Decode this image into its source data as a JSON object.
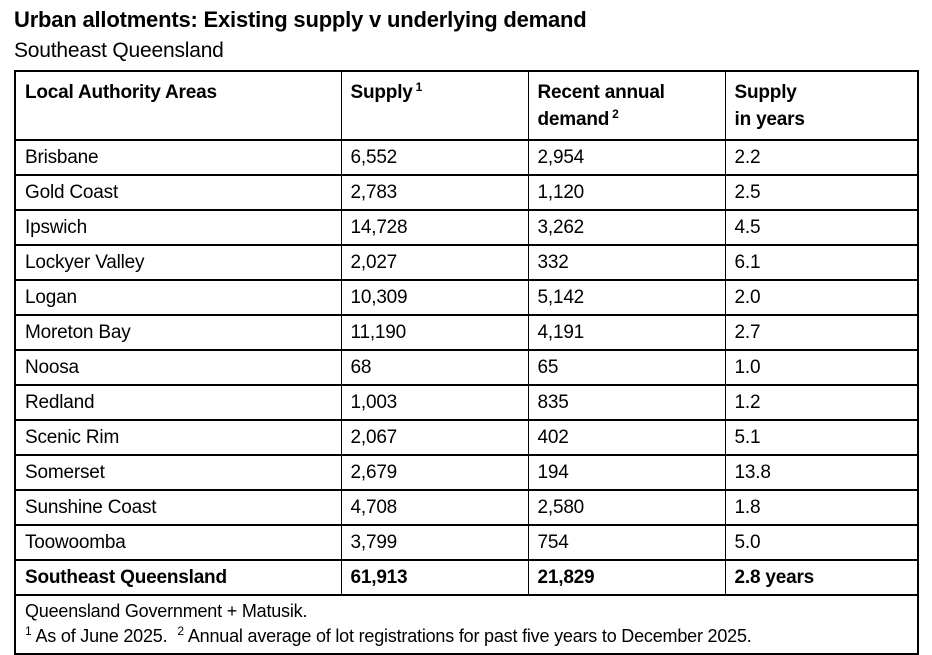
{
  "title": "Urban allotments: Existing supply v underlying demand",
  "subtitle": "Southeast Queensland",
  "table": {
    "header": {
      "col1": "Local Authority Areas",
      "col2_label": "Supply",
      "col2_sup": "1",
      "col3_line1": "Recent annual",
      "col3_line2": "demand",
      "col3_sup": "2",
      "col4_line1": "Supply",
      "col4_line2": "in years"
    },
    "rows": [
      {
        "area": "Brisbane",
        "supply": "6,552",
        "demand": "2,954",
        "years": "2.2"
      },
      {
        "area": "Gold Coast",
        "supply": "2,783",
        "demand": "1,120",
        "years": "2.5"
      },
      {
        "area": "Ipswich",
        "supply": "14,728",
        "demand": "3,262",
        "years": "4.5"
      },
      {
        "area": "Lockyer Valley",
        "supply": "2,027",
        "demand": "332",
        "years": "6.1"
      },
      {
        "area": "Logan",
        "supply": "10,309",
        "demand": "5,142",
        "years": "2.0"
      },
      {
        "area": "Moreton Bay",
        "supply": "11,190",
        "demand": "4,191",
        "years": "2.7"
      },
      {
        "area": "Noosa",
        "supply": "68",
        "demand": "65",
        "years": "1.0"
      },
      {
        "area": "Redland",
        "supply": "1,003",
        "demand": "835",
        "years": "1.2"
      },
      {
        "area": "Scenic Rim",
        "supply": "2,067",
        "demand": "402",
        "years": "5.1"
      },
      {
        "area": "Somerset",
        "supply": "2,679",
        "demand": "194",
        "years": "13.8"
      },
      {
        "area": "Sunshine Coast",
        "supply": "4,708",
        "demand": "2,580",
        "years": "1.8"
      },
      {
        "area": "Toowoomba",
        "supply": "3,799",
        "demand": "754",
        "years": "5.0"
      }
    ],
    "total": {
      "area": "Southeast Queensland",
      "supply": "61,913",
      "demand": "21,829",
      "years": "2.8 years"
    },
    "footer": {
      "source": "Queensland Government + Matusik.",
      "note1_sup": "1",
      "note1": "As of June 2025.",
      "note2_sup": "2",
      "note2": "Annual average of lot registrations for past five years to December 2025."
    }
  },
  "chart_data": {
    "type": "table",
    "title": "Urban allotments: Existing supply v underlying demand",
    "subtitle": "Southeast Queensland",
    "columns": [
      "Local Authority Areas",
      "Supply",
      "Recent annual demand",
      "Supply in years"
    ],
    "rows": [
      [
        "Brisbane",
        6552,
        2954,
        2.2
      ],
      [
        "Gold Coast",
        2783,
        1120,
        2.5
      ],
      [
        "Ipswich",
        14728,
        3262,
        4.5
      ],
      [
        "Lockyer Valley",
        2027,
        332,
        6.1
      ],
      [
        "Logan",
        10309,
        5142,
        2.0
      ],
      [
        "Moreton Bay",
        11190,
        4191,
        2.7
      ],
      [
        "Noosa",
        68,
        65,
        1.0
      ],
      [
        "Redland",
        1003,
        835,
        1.2
      ],
      [
        "Scenic Rim",
        2067,
        402,
        5.1
      ],
      [
        "Somerset",
        2679,
        194,
        13.8
      ],
      [
        "Sunshine Coast",
        4708,
        2580,
        1.8
      ],
      [
        "Toowoomba",
        3799,
        754,
        5.0
      ]
    ],
    "total_row": [
      "Southeast Queensland",
      61913,
      21829,
      2.8
    ],
    "source": "Queensland Government + Matusik.",
    "footnotes": [
      "As of June 2025.",
      "Annual average of lot registrations for past five years to December 2025."
    ]
  }
}
